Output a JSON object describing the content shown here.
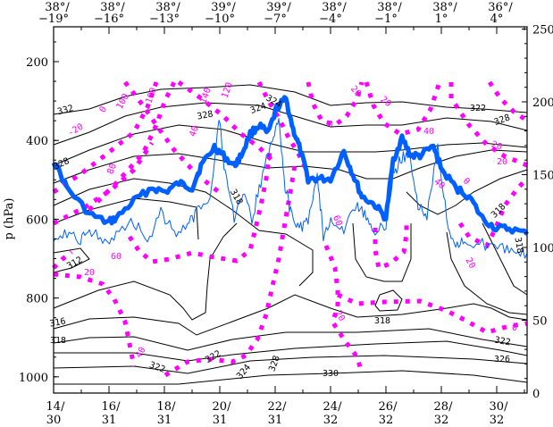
{
  "chart_data": {
    "type": "line",
    "title": "",
    "ylabel": "p (hPa)",
    "ylim_left": [
      112,
      1040
    ],
    "ylim_right": [
      0,
      252
    ],
    "xlim": [
      14,
      31.1
    ],
    "left_ticks": [
      "200",
      "400",
      "600",
      "800",
      "1000"
    ],
    "right_ticks": [
      "0",
      "50",
      "100",
      "150",
      "200",
      "250"
    ],
    "bottom_ticks": [
      {
        "day": 14,
        "top": "14/",
        "bottom": "30"
      },
      {
        "day": 16,
        "top": "16/",
        "bottom": "31"
      },
      {
        "day": 18,
        "top": "18/",
        "bottom": "31"
      },
      {
        "day": 20,
        "top": "20/",
        "bottom": "31"
      },
      {
        "day": 22,
        "top": "22/",
        "bottom": "31"
      },
      {
        "day": 24,
        "top": "24/",
        "bottom": "32"
      },
      {
        "day": 26,
        "top": "26/",
        "bottom": "32"
      },
      {
        "day": 28,
        "top": "28/",
        "bottom": "32"
      },
      {
        "day": 30,
        "top": "30/",
        "bottom": "32"
      }
    ],
    "top_ticks": [
      {
        "day": 14,
        "lat": "38°/",
        "lon": "−19°"
      },
      {
        "day": 16,
        "lat": "38°/",
        "lon": "−16°"
      },
      {
        "day": 18,
        "lat": "38°/",
        "lon": "−13°"
      },
      {
        "day": 20,
        "lat": "39°/",
        "lon": "−10°"
      },
      {
        "day": 22,
        "lat": "39°/",
        "lon": "−7°"
      },
      {
        "day": 24,
        "lat": "38°/",
        "lon": "−4°"
      },
      {
        "day": 26,
        "lat": "38°/",
        "lon": "−1°"
      },
      {
        "day": 28,
        "lat": "38°/",
        "lon": "1°"
      },
      {
        "day": 30,
        "lat": "36°/",
        "lon": "4°"
      }
    ],
    "series": [
      {
        "name": "thick blue (right axis)",
        "color": "#0060ff",
        "x": [
          14.0,
          14.48,
          15.29,
          15.94,
          16.26,
          16.9,
          17.55,
          18.03,
          18.52,
          19.0,
          19.32,
          19.81,
          20.13,
          20.52,
          20.77,
          21.1,
          21.42,
          21.74,
          22.06,
          22.39,
          22.65,
          22.87,
          23.19,
          23.52,
          24.0,
          24.48,
          24.81,
          25.13,
          25.61,
          26.0,
          26.26,
          26.58,
          26.9,
          27.23,
          27.71,
          28.03,
          28.52,
          29.0,
          29.48,
          29.97,
          30.45,
          31.1
        ],
        "y": [
          160,
          141,
          123,
          117,
          120,
          132,
          141,
          138,
          144,
          141,
          156,
          169,
          163,
          156,
          163,
          178,
          184,
          178,
          196,
          202,
          181,
          169,
          147,
          147,
          147,
          166,
          150,
          135,
          129,
          120,
          160,
          175,
          163,
          163,
          169,
          153,
          141,
          135,
          120,
          113,
          113,
          109
        ]
      },
      {
        "name": "thin blue (right axis)",
        "color": "#0060ff",
        "x": [
          14.0,
          14.48,
          14.97,
          15.29,
          15.77,
          16.26,
          16.9,
          17.39,
          17.87,
          18.35,
          18.84,
          19.16,
          19.65,
          19.97,
          20.19,
          20.52,
          20.84,
          21.16,
          21.48,
          21.9,
          22.13,
          22.32,
          22.55,
          22.87,
          23.19,
          23.52,
          23.74,
          24.06,
          24.48,
          24.97,
          25.29,
          25.61,
          26.0,
          26.26,
          26.52,
          26.84,
          27.16,
          27.48,
          27.87,
          28.19,
          28.52,
          28.84,
          29.48,
          30.13,
          30.61,
          31.1
        ],
        "y": [
          108,
          110,
          106,
          112,
          105,
          108,
          118,
          104,
          125,
          110,
          114,
          125,
          135,
          190,
          150,
          120,
          135,
          120,
          145,
          175,
          190,
          145,
          125,
          112,
          120,
          150,
          108,
          120,
          110,
          130,
          120,
          110,
          115,
          150,
          160,
          165,
          130,
          120,
          170,
          120,
          100,
          104,
          102,
          100,
          98,
          96
        ]
      }
    ],
    "contour_labels_black": [
      "332",
      "328",
      "324",
      "322",
      "318",
      "328",
      "328",
      "324",
      "318",
      "312",
      "316",
      "318",
      "322",
      "322",
      "324",
      "328",
      "318",
      "330",
      "322",
      "326",
      "318"
    ],
    "contour_labels_magenta": [
      "-20",
      "100",
      "120",
      "140",
      "100",
      "80",
      "60",
      "40",
      "0",
      "20",
      "40",
      "0",
      "20",
      "20",
      "40",
      "40",
      "20",
      "20",
      "0",
      "60",
      "20",
      "20",
      "0"
    ]
  }
}
